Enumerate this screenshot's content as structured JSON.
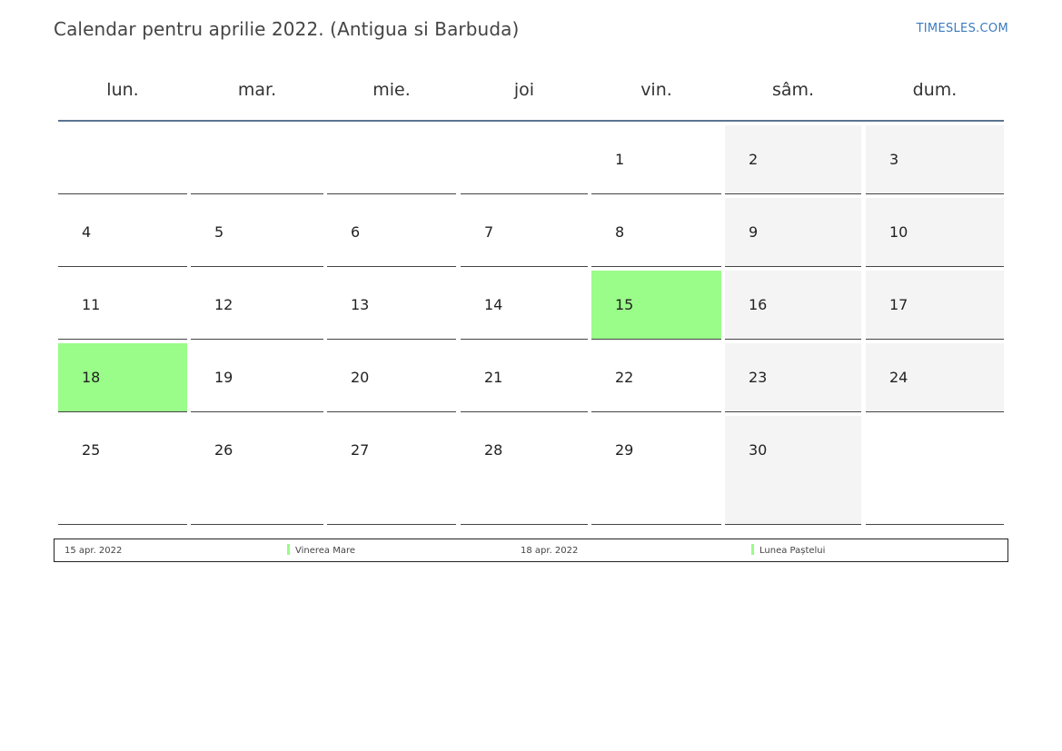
{
  "header": {
    "title": "Calendar pentru aprilie 2022. (Antigua si Barbuda)",
    "brand": "TIMESLES.COM"
  },
  "colors": {
    "holiday": "#9afc89",
    "weekend": "#f4f4f4",
    "header_rule": "#5a7490",
    "brand": "#3a7bbf"
  },
  "weekdays": [
    "lun.",
    "mar.",
    "mie.",
    "joi",
    "vin.",
    "sâm.",
    "dum."
  ],
  "weeks": [
    [
      "",
      "",
      "",
      "",
      "1",
      "2",
      "3"
    ],
    [
      "4",
      "5",
      "6",
      "7",
      "8",
      "9",
      "10"
    ],
    [
      "11",
      "12",
      "13",
      "14",
      "15",
      "16",
      "17"
    ],
    [
      "18",
      "19",
      "20",
      "21",
      "22",
      "23",
      "24"
    ],
    [
      "25",
      "26",
      "27",
      "28",
      "29",
      "30",
      ""
    ]
  ],
  "holidays": [
    "15",
    "18"
  ],
  "legend": [
    {
      "date": "15 apr. 2022",
      "name": "Vinerea Mare"
    },
    {
      "date": "18 apr. 2022",
      "name": "Lunea Paștelui"
    }
  ]
}
